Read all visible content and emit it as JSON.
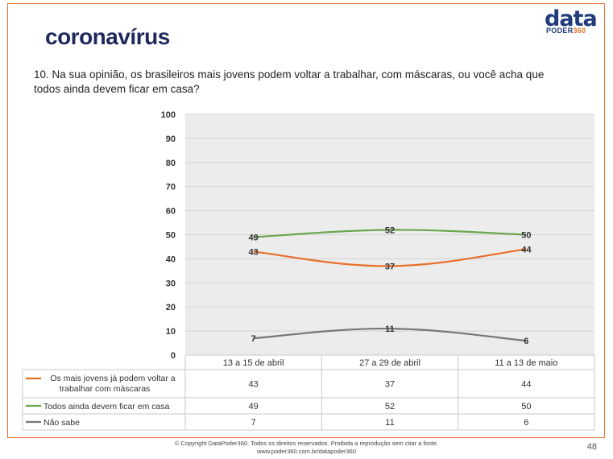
{
  "header": {
    "brand": "coronavírus",
    "logo_top": "data",
    "logo_bottom_a": "PODER",
    "logo_bottom_b": "360"
  },
  "question": "10. Na sua opinião, os brasileiros mais jovens podem voltar a trabalhar, com máscaras, ou você acha que todos ainda devem ficar em casa?",
  "chart_data": {
    "type": "line",
    "categories": [
      "13 a 15 de abril",
      "27 a 29 de abril",
      "11 a 13 de maio"
    ],
    "series": [
      {
        "name": "Os mais jovens já podem voltar a trabalhar com máscaras",
        "values": [
          43,
          37,
          44
        ],
        "color": "#e8702a"
      },
      {
        "name": "Todos ainda devem ficar em casa",
        "values": [
          49,
          52,
          50
        ],
        "color": "#6aa84f"
      },
      {
        "name": "Não sabe",
        "values": [
          7,
          11,
          6
        ],
        "color": "#777777"
      }
    ],
    "ylim": [
      0,
      100
    ],
    "yticks": [
      "0",
      "10",
      "20",
      "30",
      "40",
      "50",
      "60",
      "70",
      "80",
      "90",
      "100"
    ],
    "grid": true,
    "legend": "data-table-below"
  },
  "footer": {
    "copyright": "© Copyright DataPoder360. Todos os direitos reservados. Proibida a reprodução sem citar a fonte.",
    "url": "www.poder360.com.br/datapoder360",
    "page": "48"
  }
}
